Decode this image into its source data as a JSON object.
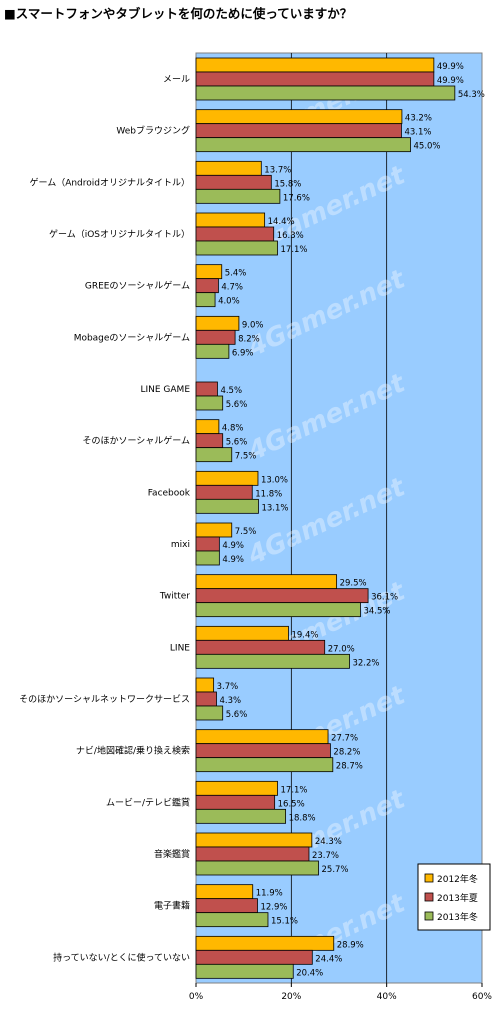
{
  "chart_data": {
    "type": "bar",
    "orientation": "horizontal",
    "title": "■スマートフォンやタブレットを何のために使っていますか？",
    "watermark": "4Gamer.net",
    "categories": [
      "メール",
      "Webブラウジング",
      "ゲーム（Androidオリジナルタイトル）",
      "ゲーム（iOSオリジナルタイトル）",
      "GREEのソーシャルゲーム",
      "Mobageのソーシャルゲーム",
      "LINE GAME",
      "そのほかソーシャルゲーム",
      "Facebook",
      "mixi",
      "Twitter",
      "LINE",
      "そのほかソーシャルネットワークサービス",
      "ナビ/地図確認/乗り換え検索",
      "ムービー/テレビ鑑賞",
      "音楽鑑賞",
      "電子書籍",
      "持っていない/とくに使っていない"
    ],
    "series": [
      {
        "name": "2012年冬",
        "color": "#ffb800",
        "values": [
          49.9,
          43.2,
          13.7,
          14.4,
          5.4,
          9.0,
          null,
          4.8,
          13.0,
          7.5,
          29.5,
          19.4,
          3.7,
          27.7,
          17.1,
          24.3,
          11.9,
          28.9
        ],
        "labels": [
          "49.9%",
          "43.2%",
          "13.7%",
          "14.4%",
          "5.4%",
          "9.0%",
          null,
          "4.8%",
          "13.0%",
          "7.5%",
          "29.5%",
          "19.4%",
          "3.7%",
          "27.7%",
          "17.1%",
          "24.3%",
          "11.9%",
          "28.9%"
        ]
      },
      {
        "name": "2013年夏",
        "color": "#c0504d",
        "values": [
          49.9,
          43.1,
          15.8,
          16.3,
          4.7,
          8.2,
          4.5,
          5.6,
          11.8,
          4.9,
          36.1,
          27.0,
          4.3,
          28.2,
          16.5,
          23.7,
          12.9,
          24.4
        ],
        "labels": [
          "49.9%",
          "43.1%",
          "15.8%",
          "16.3%",
          "4.7%",
          "8.2%",
          "4.5%",
          "5.6%",
          "11.8%",
          "4.9%",
          "36.1%",
          "27.0%",
          "4.3%",
          "28.2%",
          "16.5%",
          "23.7%",
          "12.9%",
          "24.4%"
        ]
      },
      {
        "name": "2013年冬",
        "color": "#9bbb59",
        "values": [
          54.3,
          45.0,
          17.6,
          17.1,
          4.0,
          6.9,
          5.6,
          7.5,
          13.1,
          4.9,
          34.5,
          32.2,
          5.6,
          28.7,
          18.8,
          25.7,
          15.1,
          20.4
        ],
        "labels": [
          "54.3%",
          "45.0%",
          "17.6%",
          "17.1%",
          "4.0%",
          "6.9%",
          "5.6%",
          "7.5%",
          "13.1%",
          "4.9%",
          "34.5%",
          "32.2%",
          "5.6%",
          "28.7%",
          "18.8%",
          "25.7%",
          "15.1%",
          "20.4%"
        ]
      }
    ],
    "xlim": [
      0,
      60
    ],
    "ticks": [
      "0%",
      "20%",
      "40%",
      "60%"
    ],
    "grid": true,
    "plot_background": "#99ccff",
    "legend_position": "bottom-right"
  }
}
